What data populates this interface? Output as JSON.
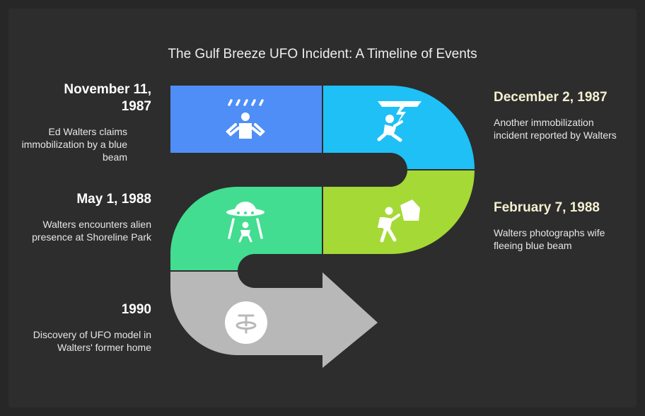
{
  "title": "The Gulf Breeze UFO Incident: A Timeline of Events",
  "colors": {
    "background": "#2d2d2d",
    "segment_1": "#4f8ef7",
    "segment_2": "#1ec0f5",
    "segment_3": "#a5d935",
    "segment_4": "#42dd90",
    "segment_5": "#b8b8b8",
    "icon": "#ffffff"
  },
  "events": [
    {
      "date": "November 11, 1987",
      "description": "Ed Walters claims immobilization by a blue beam",
      "icon": "person-under-beam-icon"
    },
    {
      "date": "December 2, 1987",
      "description": "Another immobilization incident reported by Walters",
      "icon": "person-struck-by-lightning-icon"
    },
    {
      "date": "May 1, 1988",
      "description": "Walters encounters alien presence at Shoreline Park",
      "icon": "ufo-abduction-icon"
    },
    {
      "date": "February 7, 1988",
      "description": "Walters photographs wife fleeing blue beam",
      "icon": "person-fleeing-icon"
    },
    {
      "date": "1990",
      "description": "Discovery of UFO model in Walters' former home",
      "icon": "ufo-model-icon"
    }
  ]
}
